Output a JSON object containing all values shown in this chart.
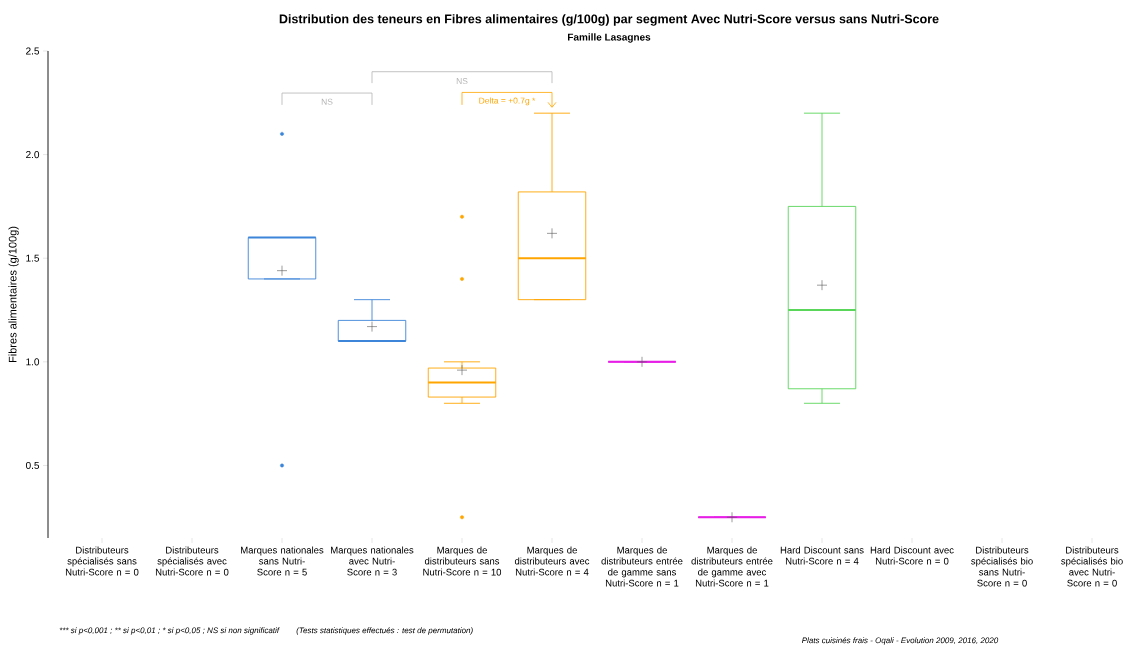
{
  "chart_data": {
    "type": "box",
    "title": "Distribution des teneurs en Fibres alimentaires (g/100g) par segment Avec Nutri-Score versus sans Nutri-Score",
    "subtitle": "Famille Lasagnes",
    "ylabel": "Fibres alimentaires (g/100g)",
    "categories": [
      "Distributeurs spécialisés sans Nutri-Score n = 0",
      "Distributeurs spécialisés avec Nutri-Score n = 0",
      "Marques nationales sans Nutri-Score n = 5",
      "Marques nationales avec Nutri-Score n = 3",
      "Marques de distributeurs sans Nutri-Score n = 10",
      "Marques de distributeurs avec Nutri-Score n = 4",
      "Marques de distributeurs entrée de gamme sans Nutri-Score n = 1",
      "Marques de distributeurs entrée de gamme avec Nutri-Score n = 1",
      "Hard Discount sans Nutri-Score n = 4",
      "Hard Discount avec Nutri-Score n = 0",
      "Distributeurs spécialisés bio sans Nutri-Score n = 0",
      "Distributeurs spécialisés bio avec Nutri-Score n = 0"
    ],
    "boxes": [
      null,
      null,
      {
        "low": 1.4,
        "q1": 1.4,
        "median": 1.6,
        "q3": 1.6,
        "high": 1.6,
        "mean": 1.44,
        "outliers": [
          2.1,
          0.5
        ]
      },
      {
        "low": 1.1,
        "q1": 1.1,
        "median": 1.1,
        "q3": 1.2,
        "high": 1.3,
        "mean": 1.17
      },
      {
        "low": 0.8,
        "q1": 0.83,
        "median": 0.9,
        "q3": 0.97,
        "high": 1.0,
        "mean": 0.96,
        "outliers": [
          1.7,
          1.4,
          0.25
        ]
      },
      {
        "low": 1.3,
        "q1": 1.3,
        "median": 1.5,
        "q3": 1.82,
        "high": 2.2,
        "mean": 1.62
      },
      {
        "low": 1.0,
        "q1": 1.0,
        "median": 1.0,
        "q3": 1.0,
        "high": 1.0,
        "mean": 1.0
      },
      {
        "low": 0.25,
        "q1": 0.25,
        "median": 0.25,
        "q3": 0.25,
        "high": 0.25,
        "mean": 0.25
      },
      {
        "low": 0.8,
        "q1": 0.87,
        "median": 1.25,
        "q3": 1.75,
        "high": 2.2,
        "mean": 1.37
      },
      null,
      null,
      null
    ],
    "colors": [
      "#3d85d8",
      "#3d85d8",
      "#3d85d8",
      "#3d85d8",
      "#ffa500",
      "#ffa500",
      "#e61ee6",
      "#e61ee6",
      "#5ad65a",
      "#5ad65a",
      "#5ad65a",
      "#5ad65a"
    ],
    "ylim": [
      0.15,
      2.5
    ],
    "yticks": [
      0.5,
      {
        "value": 1.0,
        "label": "1.0"
      },
      1.5,
      {
        "value": 2.0,
        "label": "2.0"
      },
      2.5
    ],
    "annotations": [
      "NS",
      "NS",
      "Delta = +0.7g *",
      "*** si p<0,001 ; ** si p<0,01 ; * si p<0,05 ; NS si non significatif",
      "(Tests statistiques effectués : test de permutation)",
      "Plats cuisinés frais - Oqali - Evolution 2009, 2016, 2020"
    ]
  }
}
